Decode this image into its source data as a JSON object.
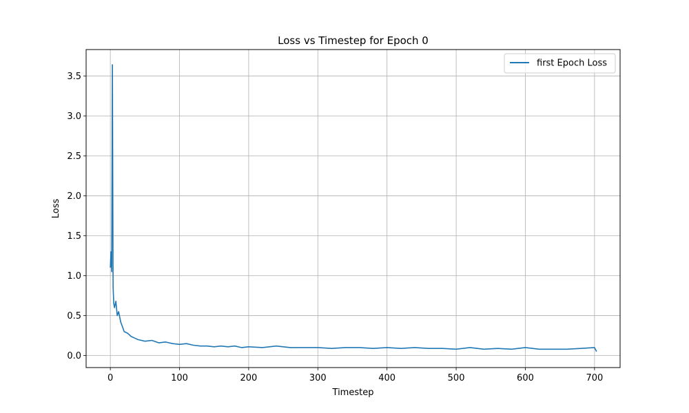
{
  "chart_data": {
    "type": "line",
    "title": "Loss vs Timestep for Epoch 0",
    "xlabel": "Timestep",
    "ylabel": "Loss",
    "xlim": [
      -35,
      737
    ],
    "ylim": [
      -0.15,
      3.83
    ],
    "xticks": [
      0,
      100,
      200,
      300,
      400,
      500,
      600,
      700
    ],
    "yticks": [
      0.0,
      0.5,
      1.0,
      1.5,
      2.0,
      2.5,
      3.0,
      3.5
    ],
    "xtick_labels": [
      "0",
      "100",
      "200",
      "300",
      "400",
      "500",
      "600",
      "700"
    ],
    "ytick_labels": [
      "0.0",
      "0.5",
      "1.0",
      "1.5",
      "2.0",
      "2.5",
      "3.0",
      "3.5"
    ],
    "grid": true,
    "legend_position": "top-right",
    "series": [
      {
        "name": "first Epoch Loss",
        "color": "#1f77b4",
        "x": [
          0,
          1,
          2,
          3,
          4,
          5,
          6,
          8,
          10,
          12,
          15,
          18,
          20,
          25,
          30,
          35,
          40,
          50,
          60,
          70,
          80,
          90,
          100,
          110,
          120,
          130,
          140,
          150,
          160,
          170,
          180,
          190,
          200,
          220,
          240,
          260,
          280,
          300,
          320,
          340,
          360,
          380,
          400,
          420,
          440,
          460,
          480,
          500,
          520,
          540,
          560,
          580,
          600,
          620,
          640,
          660,
          680,
          700,
          703
        ],
        "y": [
          1.1,
          1.3,
          1.05,
          3.64,
          0.86,
          0.65,
          0.6,
          0.68,
          0.5,
          0.55,
          0.42,
          0.35,
          0.3,
          0.28,
          0.24,
          0.22,
          0.2,
          0.18,
          0.19,
          0.16,
          0.17,
          0.15,
          0.14,
          0.15,
          0.13,
          0.12,
          0.12,
          0.11,
          0.12,
          0.11,
          0.12,
          0.1,
          0.11,
          0.1,
          0.12,
          0.1,
          0.1,
          0.1,
          0.09,
          0.1,
          0.1,
          0.09,
          0.1,
          0.09,
          0.1,
          0.09,
          0.09,
          0.08,
          0.1,
          0.08,
          0.09,
          0.08,
          0.1,
          0.08,
          0.08,
          0.08,
          0.09,
          0.1,
          0.05
        ]
      }
    ]
  }
}
